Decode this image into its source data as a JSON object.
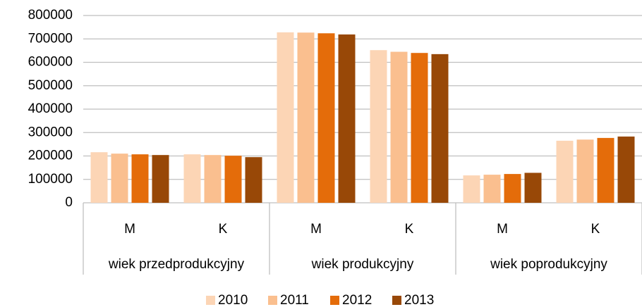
{
  "chart_data": {
    "type": "bar",
    "categories": [
      "M",
      "K",
      "M",
      "K",
      "M",
      "K"
    ],
    "groups": [
      "wiek przedprodukcyjny",
      "wiek produkcyjny",
      "wiek poprodukcyjny"
    ],
    "series": [
      {
        "name": "2010",
        "color": "#fcd5b5",
        "values": [
          216000,
          207000,
          728000,
          652000,
          117000,
          265000
        ]
      },
      {
        "name": "2011",
        "color": "#fabf8f",
        "values": [
          210000,
          204000,
          727000,
          645000,
          120000,
          270000
        ]
      },
      {
        "name": "2012",
        "color": "#e46c0a",
        "values": [
          207000,
          201000,
          724000,
          640000,
          123000,
          277000
        ]
      },
      {
        "name": "2013",
        "color": "#984807",
        "values": [
          204000,
          195000,
          719000,
          635000,
          128000,
          283000
        ]
      }
    ],
    "ylim": [
      0,
      800000
    ],
    "yticks": [
      0,
      100000,
      200000,
      300000,
      400000,
      500000,
      600000,
      700000,
      800000
    ],
    "grid": true,
    "legend": "bottom"
  }
}
